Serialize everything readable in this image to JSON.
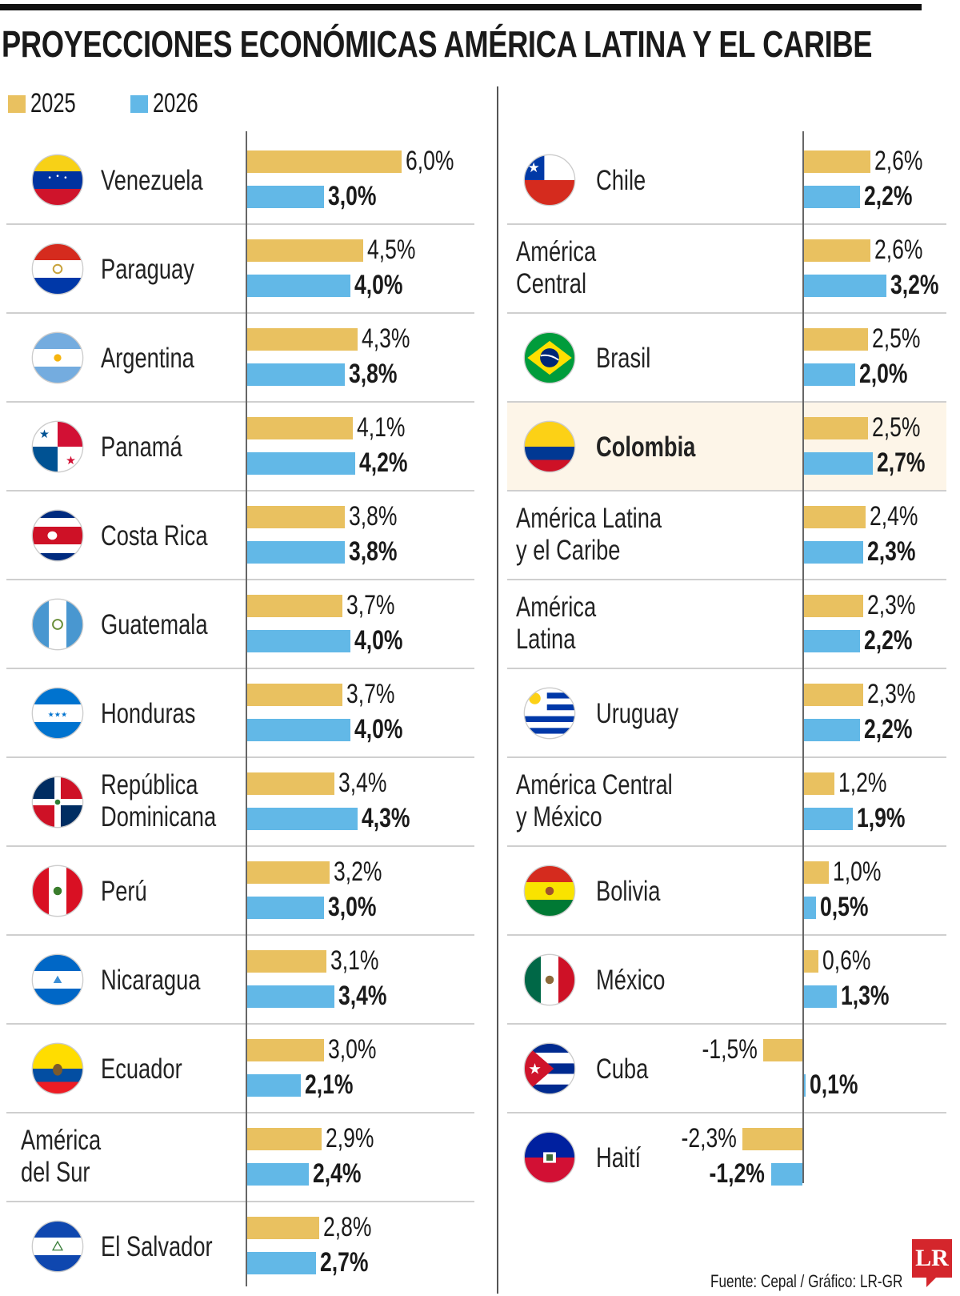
{
  "title": "PROYECCIONES ECONÓMICAS AMÉRICA LATINA Y EL CARIBE",
  "source": "Fuente: Cepal / Gráfico: LR-GR",
  "logo": "LR",
  "colors": {
    "2025": "#e9c160",
    "2026": "#62b8e7",
    "highlight_bg": "#fdf5e8"
  },
  "chart_data": {
    "type": "bar",
    "orientation": "horizontal",
    "unit": "%",
    "legend": [
      {
        "name": "2025",
        "color": "#e9c160"
      },
      {
        "name": "2026",
        "color": "#62b8e7"
      }
    ],
    "left": [
      {
        "name": "Venezuela",
        "flag": "flag-venezuela-icon",
        "v2025": 6.0,
        "v2026": 3.0,
        "l2025": "6,0%",
        "l2026": "3,0%"
      },
      {
        "name": "Paraguay",
        "flag": "flag-paraguay-icon",
        "v2025": 4.5,
        "v2026": 4.0,
        "l2025": "4,5%",
        "l2026": "4,0%"
      },
      {
        "name": "Argentina",
        "flag": "flag-argentina-icon",
        "v2025": 4.3,
        "v2026": 3.8,
        "l2025": "4,3%",
        "l2026": "3,8%"
      },
      {
        "name": "Panamá",
        "flag": "flag-panama-icon",
        "v2025": 4.1,
        "v2026": 4.2,
        "l2025": "4,1%",
        "l2026": "4,2%"
      },
      {
        "name": "Costa Rica",
        "flag": "flag-costa-rica-icon",
        "v2025": 3.8,
        "v2026": 3.8,
        "l2025": "3,8%",
        "l2026": "3,8%"
      },
      {
        "name": "Guatemala",
        "flag": "flag-guatemala-icon",
        "v2025": 3.7,
        "v2026": 4.0,
        "l2025": "3,7%",
        "l2026": "4,0%"
      },
      {
        "name": "Honduras",
        "flag": "flag-honduras-icon",
        "v2025": 3.7,
        "v2026": 4.0,
        "l2025": "3,7%",
        "l2026": "4,0%"
      },
      {
        "name": "República\nDominicana",
        "flag": "flag-dominican-republic-icon",
        "v2025": 3.4,
        "v2026": 4.3,
        "l2025": "3,4%",
        "l2026": "4,3%"
      },
      {
        "name": "Perú",
        "flag": "flag-peru-icon",
        "v2025": 3.2,
        "v2026": 3.0,
        "l2025": "3,2%",
        "l2026": "3,0%"
      },
      {
        "name": "Nicaragua",
        "flag": "flag-nicaragua-icon",
        "v2025": 3.1,
        "v2026": 3.4,
        "l2025": "3,1%",
        "l2026": "3,4%"
      },
      {
        "name": "Ecuador",
        "flag": "flag-ecuador-icon",
        "v2025": 3.0,
        "v2026": 2.1,
        "l2025": "3,0%",
        "l2026": "2,1%"
      },
      {
        "name": "América\ndel Sur",
        "flag": null,
        "v2025": 2.9,
        "v2026": 2.4,
        "l2025": "2,9%",
        "l2026": "2,4%"
      },
      {
        "name": "El Salvador",
        "flag": "flag-el-salvador-icon",
        "v2025": 2.8,
        "v2026": 2.7,
        "l2025": "2,8%",
        "l2026": "2,7%"
      }
    ],
    "right": [
      {
        "name": "Chile",
        "flag": "flag-chile-icon",
        "v2025": 2.6,
        "v2026": 2.2,
        "l2025": "2,6%",
        "l2026": "2,2%"
      },
      {
        "name": "América\nCentral",
        "flag": null,
        "v2025": 2.6,
        "v2026": 3.2,
        "l2025": "2,6%",
        "l2026": "3,2%"
      },
      {
        "name": "Brasil",
        "flag": "flag-brazil-icon",
        "v2025": 2.5,
        "v2026": 2.0,
        "l2025": "2,5%",
        "l2026": "2,0%"
      },
      {
        "name": "Colombia",
        "flag": "flag-colombia-icon",
        "highlight": true,
        "v2025": 2.5,
        "v2026": 2.7,
        "l2025": "2,5%",
        "l2026": "2,7%"
      },
      {
        "name": "América Latina\ny el Caribe",
        "flag": null,
        "v2025": 2.4,
        "v2026": 2.3,
        "l2025": "2,4%",
        "l2026": "2,3%"
      },
      {
        "name": "América\nLatina",
        "flag": null,
        "v2025": 2.3,
        "v2026": 2.2,
        "l2025": "2,3%",
        "l2026": "2,2%"
      },
      {
        "name": "Uruguay",
        "flag": "flag-uruguay-icon",
        "v2025": 2.3,
        "v2026": 2.2,
        "l2025": "2,3%",
        "l2026": "2,2%"
      },
      {
        "name": "América Central\ny México",
        "flag": null,
        "v2025": 1.2,
        "v2026": 1.9,
        "l2025": "1,2%",
        "l2026": "1,9%"
      },
      {
        "name": "Bolivia",
        "flag": "flag-bolivia-icon",
        "v2025": 1.0,
        "v2026": 0.5,
        "l2025": "1,0%",
        "l2026": "0,5%"
      },
      {
        "name": "México",
        "flag": "flag-mexico-icon",
        "v2025": 0.6,
        "v2026": 1.3,
        "l2025": "0,6%",
        "l2026": "1,3%"
      },
      {
        "name": "Cuba",
        "flag": "flag-cuba-icon",
        "v2025": -1.5,
        "v2026": 0.1,
        "l2025": "-1,5%",
        "l2026": "0,1%"
      },
      {
        "name": "Haití",
        "flag": "flag-haiti-icon",
        "v2025": -2.3,
        "v2026": -1.2,
        "l2025": "-2,3%",
        "l2026": "-1,2%"
      }
    ]
  }
}
